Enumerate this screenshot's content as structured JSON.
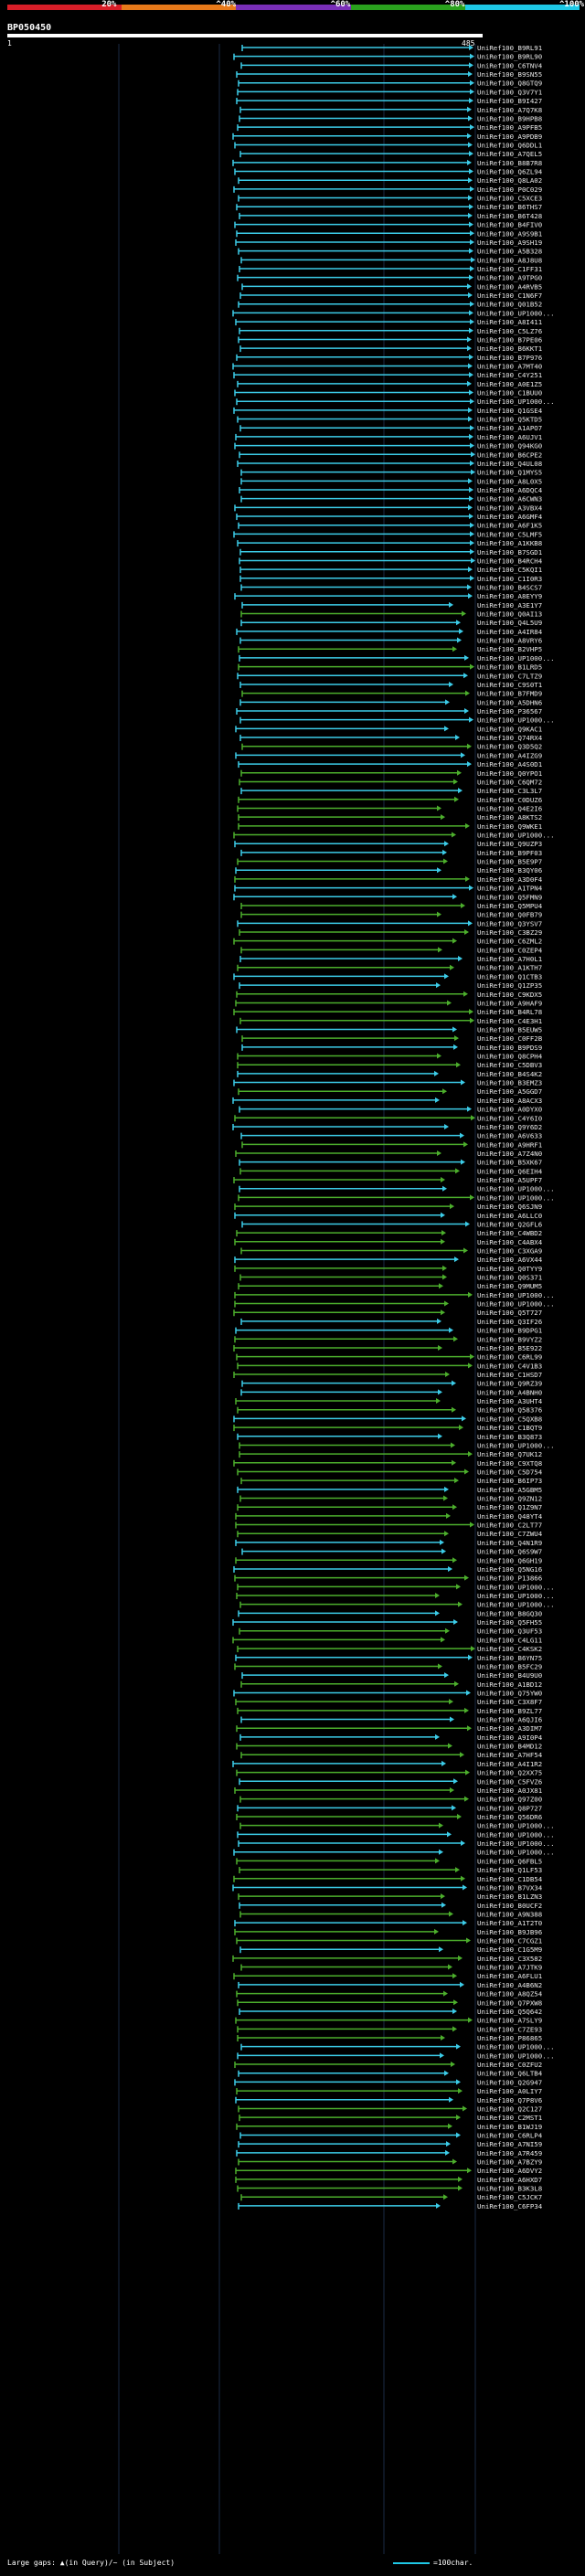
{
  "legend": {
    "labels": [
      "20%",
      "^40%",
      "^60%",
      "^80%",
      "^100%"
    ],
    "colors": [
      "#d81e28",
      "#e87a1a",
      "#7a2fb8",
      "#2aa21e",
      "#1ec8e6"
    ]
  },
  "title": "BP050450",
  "query": {
    "start": "1",
    "end": "485"
  },
  "footer": {
    "text": "Large gaps: ▲(in Query)/~ (in Subject)",
    "scale": "=100char."
  },
  "colors": {
    "cyan": "#3ccce8",
    "green": "#4cae2c"
  },
  "rows": [
    "UniRef100_B9RL91",
    "UniRef100_B9RL90",
    "UniRef100_C6TNV4",
    "UniRef100_B9SN55",
    "UniRef100_Q8GTQ9",
    "UniRef100_Q3V7Y1",
    "UniRef100_B9I427",
    "UniRef100_A7Q7K8",
    "UniRef100_B9HPB8",
    "UniRef100_A9PFB5",
    "UniRef100_A9PDB9",
    "UniRef100_Q6DDL1",
    "UniRef100_A7QEL5",
    "UniRef100_B8B7R8",
    "UniRef100_Q6ZL94",
    "UniRef100_Q8LA02",
    "UniRef100_P0C029",
    "UniRef100_C5XCE3",
    "UniRef100_B6THS7",
    "UniRef100_B6T428",
    "UniRef100_B4FIV0",
    "UniRef100_A9S9B1",
    "UniRef100_A9SH19",
    "UniRef100_A5B328",
    "UniRef100_A8J8U8",
    "UniRef100_C1FF31",
    "UniRef100_A9TPG0",
    "UniRef100_A4RVB5",
    "UniRef100_C1N6F7",
    "UniRef100_Q01B52",
    "UniRef100_UP1000...",
    "UniRef100_A8I411",
    "UniRef100_C5LZ76",
    "UniRef100_B7PE06",
    "UniRef100_B6KKT1",
    "UniRef100_B7P976",
    "UniRef100_A7MT40",
    "UniRef100_C4Y251",
    "UniRef100_A0E1Z5",
    "UniRef100_C1BUU0",
    "UniRef100_UP1000...",
    "UniRef100_Q1GSE4",
    "UniRef100_Q5KTD5",
    "UniRef100_A1APO7",
    "UniRef100_A6UJV1",
    "UniRef100_Q94KG0",
    "UniRef100_B6CPE2",
    "UniRef100_Q4UL08",
    "UniRef100_Q1MYS5",
    "UniRef100_A8L0X5",
    "UniRef100_A6DQC4",
    "UniRef100_A6CWN3",
    "UniRef100_A3VBX4",
    "UniRef100_A6GMF4",
    "UniRef100_A6F1K5",
    "UniRef100_C5LMF5",
    "UniRef100_A1KKB8",
    "UniRef100_B7SGD1",
    "UniRef100_B4RCH4",
    "UniRef100_C5KQI1",
    "UniRef100_C1I0R3",
    "UniRef100_B4SCS7",
    "UniRef100_A8EYY9",
    "UniRef100_A3E1Y7",
    "UniRef100_Q0AI13",
    "UniRef100_Q4L5U9",
    "UniRef100_A4IR84",
    "UniRef100_A8VRY6",
    "UniRef100_B2VHP5",
    "UniRef100_UP1000...",
    "UniRef100_B1LRD5",
    "UniRef100_C7LTZ9",
    "UniRef100_C9S0T1",
    "UniRef100_B7FMD9",
    "UniRef100_A5DHN6",
    "UniRef100_P36567",
    "UniRef100_UP1000...",
    "UniRef100_Q9KAC1",
    "UniRef100_Q74RX4",
    "UniRef100_Q3D5Q2",
    "UniRef100_A4IZG9",
    "UniRef100_A4S0D1",
    "UniRef100_Q0YPO1",
    "UniRef100_C6QM72",
    "UniRef100_C3L3L7",
    "UniRef100_C0DUZ6",
    "UniRef100_Q4E2I6",
    "UniRef100_A8KTS2",
    "UniRef100_Q9WKE1",
    "UniRef100_UP1000...",
    "UniRef100_Q9UZP3",
    "UniRef100_B9PF03",
    "UniRef100_B5E9P7",
    "UniRef100_B3QY06",
    "UniRef100_A3D0F4",
    "UniRef100_A1TPN4",
    "UniRef100_Q5FMN9",
    "UniRef100_Q5MPU4",
    "UniRef100_Q0FB79",
    "UniRef100_Q3YSV7",
    "UniRef100_C3BZ29",
    "UniRef100_C6ZML2",
    "UniRef100_C0ZEP4",
    "UniRef100_A7H0L1",
    "UniRef100_A1KTH7",
    "UniRef100_Q1CTB3",
    "UniRef100_Q1ZP35",
    "UniRef100_C9KDX5",
    "UniRef100_A9HAF9",
    "UniRef100_B4RL78",
    "UniRef100_C4E3H1",
    "UniRef100_B5EUW5",
    "UniRef100_C0FF2B",
    "UniRef100_B9PDS9",
    "UniRef100_Q8CPH4",
    "UniRef100_C5DBV3",
    "UniRef100_B4S4K2",
    "UniRef100_B3EMZ3",
    "UniRef100_A5GGD7",
    "UniRef100_A8ACX3",
    "UniRef100_A0DYX0",
    "UniRef100_C4Y6I0",
    "UniRef100_Q9Y6D2",
    "UniRef100_A6V633",
    "UniRef100_A9HRF1",
    "UniRef100_A7Z4N0",
    "UniRef100_B5XK67",
    "UniRef100_Q6EIH4",
    "UniRef100_A5UPF7",
    "UniRef100_UP1000...",
    "UniRef100_UP1000...",
    "UniRef100_Q6SJN9",
    "UniRef100_A6LLC0",
    "UniRef100_Q2GFL6",
    "UniRef100_C4WBD2",
    "UniRef100_C4ABX4",
    "UniRef100_C3XGA9",
    "UniRef100_A6VX44",
    "UniRef100_Q0TYY9",
    "UniRef100_Q0S371",
    "UniRef100_Q9MUM5",
    "UniRef100_UP1000...",
    "UniRef100_UP1000...",
    "UniRef100_Q5T727",
    "UniRef100_Q3IF26",
    "UniRef100_B9DPG1",
    "UniRef100_B9VYZ2",
    "UniRef100_B5E922",
    "UniRef100_C6RL99",
    "UniRef100_C4V1B3",
    "UniRef100_C1HSD7",
    "UniRef100_Q9RZ39",
    "UniRef100_A4BNH0",
    "UniRef100_A3UHT4",
    "UniRef100_Q58376",
    "UniRef100_C5QXB8",
    "UniRef100_C1BQT9",
    "UniRef100_B3Q873",
    "UniRef100_UP1000...",
    "UniRef100_Q7UK12",
    "UniRef100_C9XTQ8",
    "UniRef100_C5D754",
    "UniRef100_B6IP73",
    "UniRef100_A5GBM5",
    "UniRef100_Q9ZN12",
    "UniRef100_Q1Z9N7",
    "UniRef100_Q48YT4",
    "UniRef100_C2LT77",
    "UniRef100_C7ZWU4",
    "UniRef100_Q4N1R9",
    "UniRef100_Q6S9W7",
    "UniRef100_Q6GH19",
    "UniRef100_Q5NG16",
    "UniRef100_P13866",
    "UniRef100_UP1000...",
    "UniRef100_UP1000...",
    "UniRef100_UP1000...",
    "UniRef100_B8GQ30",
    "UniRef100_Q5FH55",
    "UniRef100_Q3UF53",
    "UniRef100_C4LG11",
    "UniRef100_C4KSK2",
    "UniRef100_B6YN75",
    "UniRef100_B5FC29",
    "UniRef100_B4U9U0",
    "UniRef100_A1BD12",
    "UniRef100_Q75YW0",
    "UniRef100_C3X8F7",
    "UniRef100_B9ZL77",
    "UniRef100_A6QJI6",
    "UniRef100_A3DIM7",
    "UniRef100_A9I0P4",
    "UniRef100_B4MD12",
    "UniRef100_A7HF54",
    "UniRef100_A4I1R2",
    "UniRef100_Q2XX75",
    "UniRef100_C5FVZ6",
    "UniRef100_A0JX81",
    "UniRef100_Q97Z00",
    "UniRef100_Q8P727",
    "UniRef100_Q56DR6",
    "UniRef100_UP1000...",
    "UniRef100_UP1000...",
    "UniRef100_UP1000...",
    "UniRef100_UP1000...",
    "UniRef100_Q6FBL5",
    "UniRef100_Q1LF53",
    "UniRef100_C1DB54",
    "UniRef100_B7VX34",
    "UniRef100_B1LZN3",
    "UniRef100_B0UCF2",
    "UniRef100_A9N388",
    "UniRef100_A1T2T0",
    "UniRef100_B9JB96",
    "UniRef100_C7CGZ1",
    "UniRef100_C1G5M9",
    "UniRef100_C3X582",
    "UniRef100_A7JTK9",
    "UniRef100_A6FLU1",
    "UniRef100_A4B6N2",
    "UniRef100_A8QZ54",
    "UniRef100_Q7PXW8",
    "UniRef100_Q5Q642",
    "UniRef100_A7SLY9",
    "UniRef100_C7ZE93",
    "UniRef100_P86865",
    "UniRef100_UP1000...",
    "UniRef100_UP1000...",
    "UniRef100_C0ZFU2",
    "UniRef100_Q6LTB4",
    "UniRef100_Q2G947",
    "UniRef100_A0LIY7",
    "UniRef100_Q7P8V6",
    "UniRef100_Q2C127",
    "UniRef100_C2MST1",
    "UniRef100_B1WJ19",
    "UniRef100_C6RLP4",
    "UniRef100_A7NI59",
    "UniRef100_A7R459",
    "UniRef100_A7BZY9",
    "UniRef100_A6DVY2",
    "UniRef100_A6HXD7",
    "UniRef100_B3K3L8",
    "UniRef100_C5JCK7",
    "UniRef100_C6FP34"
  ]
}
